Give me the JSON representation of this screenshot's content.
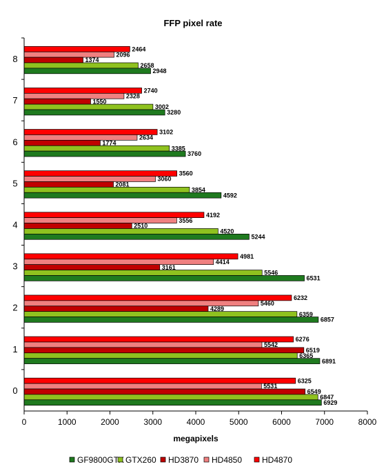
{
  "chart_data": {
    "type": "bar",
    "orientation": "horizontal",
    "title": "FFP pixel rate",
    "xlabel": "megapixels",
    "ylabel": "",
    "xlim": [
      0,
      8000
    ],
    "x_ticks": [
      "0",
      "1000",
      "2000",
      "3000",
      "4000",
      "5000",
      "6000",
      "7000",
      "8000"
    ],
    "categories": [
      "0",
      "1",
      "2",
      "3",
      "4",
      "5",
      "6",
      "7",
      "8"
    ],
    "series": [
      {
        "name": "GF9800GTX",
        "color": "#1f7a1f",
        "values": [
          6929,
          6891,
          6857,
          6531,
          5244,
          4592,
          3760,
          3280,
          2948
        ]
      },
      {
        "name": "GTX260",
        "color": "#8fc21f",
        "values": [
          6847,
          6365,
          6359,
          5546,
          4520,
          3854,
          3385,
          3002,
          2658
        ]
      },
      {
        "name": "HD3870",
        "color": "#c00000",
        "values": [
          6549,
          6519,
          4289,
          3161,
          2510,
          2081,
          1774,
          1550,
          1374
        ]
      },
      {
        "name": "HD4850",
        "color": "#f08080",
        "values": [
          5531,
          5542,
          5460,
          4414,
          3556,
          3060,
          2634,
          2328,
          2096
        ]
      },
      {
        "name": "HD4870",
        "color": "#ff0000",
        "values": [
          6325,
          6276,
          6232,
          4981,
          4192,
          3560,
          3102,
          2740,
          2464
        ]
      }
    ],
    "grid": false,
    "legend_position": "bottom"
  }
}
